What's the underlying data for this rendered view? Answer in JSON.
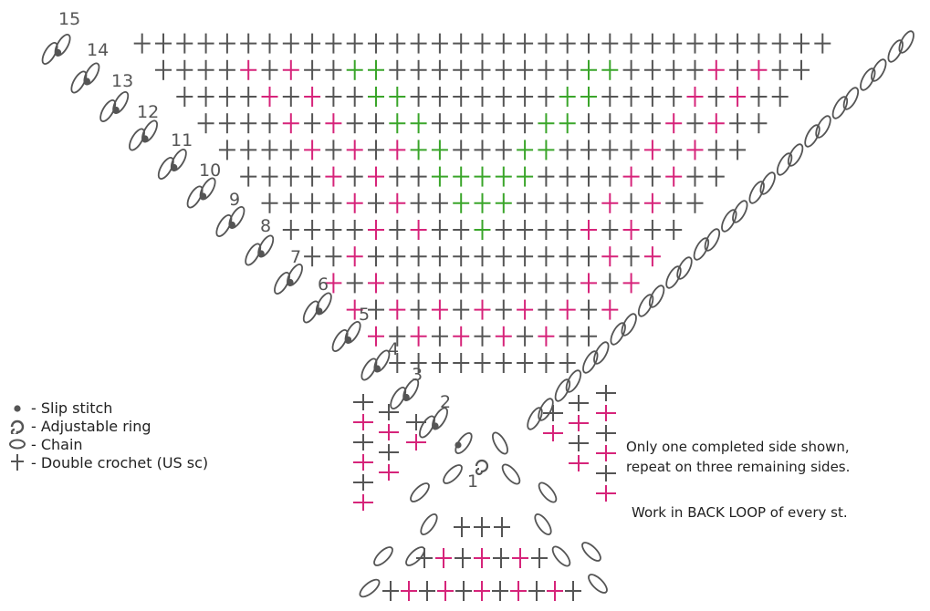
{
  "colors": {
    "stitch": "#555555",
    "highlight_pink": "#d6247a",
    "highlight_green": "#3aa52a",
    "chain": "#555555",
    "slip": "#555555"
  },
  "rows": [
    "1",
    "2",
    "3",
    "4",
    "5",
    "6",
    "7",
    "8",
    "9",
    "10",
    "11",
    "12",
    "13",
    "14",
    "15"
  ],
  "legend": [
    {
      "icon": "slip-stitch-icon",
      "label": "- Slip stitch"
    },
    {
      "icon": "adjustable-ring-icon",
      "label": "- Adjustable ring"
    },
    {
      "icon": "chain-icon",
      "label": "- Chain"
    },
    {
      "icon": "double-crochet-icon",
      "label": "- Double crochet (US sc)"
    }
  ],
  "notes": {
    "line1": "Only one completed side shown,",
    "line2": "repeat on three remaining sides.",
    "line3": "Work in BACK LOOP of every st."
  }
}
